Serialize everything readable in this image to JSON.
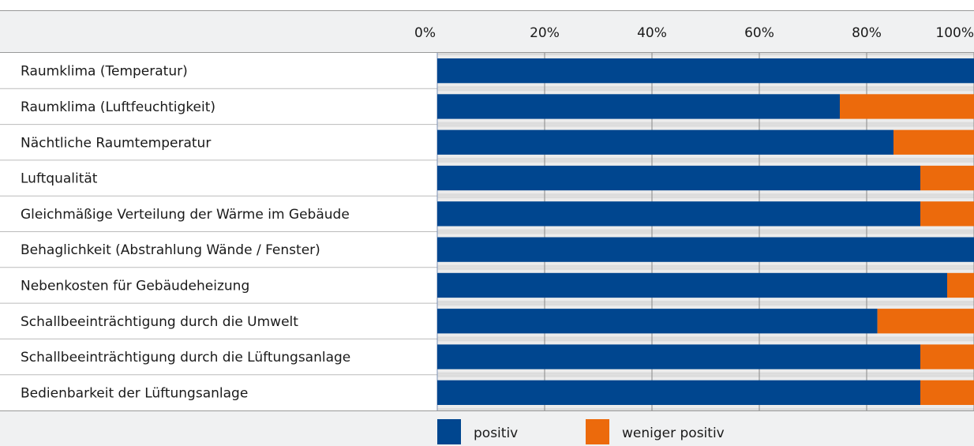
{
  "chart_data": {
    "type": "bar",
    "orientation": "horizontal",
    "stacked": true,
    "categories": [
      "Raumklima (Temperatur)",
      "Raumklima (Luftfeuchtigkeit)",
      "Nächtliche Raumtemperatur",
      "Luftqualität",
      "Gleichmäßige Verteilung der Wärme im Gebäude",
      "Behaglichkeit (Abstrahlung Wände / Fenster)",
      "Nebenkosten für Gebäudeheizung",
      "Schallbeeinträchtigung durch die Umwelt",
      "Schallbeeinträchtigung durch die Lüftungsanlage",
      "Bedienbarkeit der Lüftungsanlage"
    ],
    "series": [
      {
        "name": "positiv",
        "color": "#00468f",
        "values": [
          100,
          75,
          85,
          90,
          90,
          100,
          95,
          82,
          90,
          90
        ]
      },
      {
        "name": "weniger positiv",
        "color": "#ec6a0c",
        "values": [
          0,
          25,
          15,
          10,
          10,
          0,
          5,
          18,
          10,
          10
        ]
      }
    ],
    "xlim": [
      0,
      100
    ],
    "xticks": [
      {
        "value": 0,
        "label": "0%"
      },
      {
        "value": 20,
        "label": "20%"
      },
      {
        "value": 40,
        "label": "40%"
      },
      {
        "value": 60,
        "label": "60%"
      },
      {
        "value": 80,
        "label": "80%"
      },
      {
        "value": 100,
        "label": "100%"
      }
    ],
    "grid": true,
    "legend": "bottom"
  }
}
